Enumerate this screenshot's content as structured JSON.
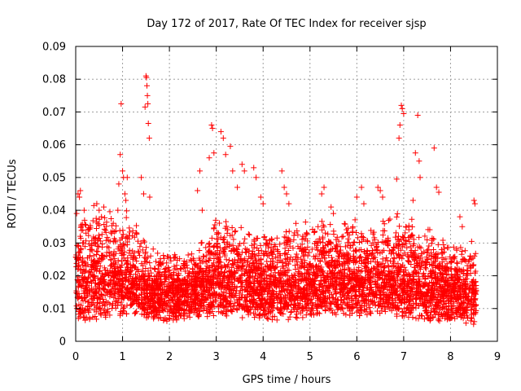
{
  "chart_data": {
    "type": "scatter",
    "title": "Day 172 of 2017, Rate Of TEC Index for receiver sjsp",
    "xlabel": "GPS time / hours",
    "ylabel": "ROTI / TECUs",
    "xlim": [
      0,
      9
    ],
    "ylim": [
      0,
      0.09
    ],
    "x_ticks": [
      "0",
      "1",
      "2",
      "3",
      "4",
      "5",
      "6",
      "7",
      "8",
      "9"
    ],
    "y_ticks": [
      "0",
      "0.01",
      "0.02",
      "0.03",
      "0.04",
      "0.05",
      "0.06",
      "0.07",
      "0.08",
      "0.09"
    ],
    "grid": true,
    "marker": "plus",
    "color": "#ff0000",
    "seed": 172,
    "series": [
      {
        "name": "ROTI",
        "x": [
          0.02,
          0.05,
          0.08,
          0.1,
          0.12,
          0.15,
          0.18,
          0.22,
          0.3,
          0.45,
          0.5,
          0.55,
          0.6,
          0.9,
          0.92,
          0.95,
          0.97,
          1.0,
          1.02,
          1.05,
          1.07,
          1.1,
          1.3,
          1.4,
          1.45,
          1.48,
          1.5,
          1.51,
          1.52,
          1.53,
          1.54,
          1.55,
          1.57,
          1.58,
          2.6,
          2.65,
          2.7,
          2.85,
          2.9,
          2.92,
          2.95,
          3.1,
          3.15,
          3.2,
          3.3,
          3.35,
          3.45,
          3.55,
          3.6,
          3.8,
          3.85,
          3.95,
          4.0,
          4.4,
          4.45,
          4.5,
          4.55,
          4.7,
          5.25,
          5.3,
          5.45,
          5.5,
          6.0,
          6.1,
          6.15,
          6.45,
          6.5,
          6.55,
          6.85,
          6.9,
          6.92,
          6.95,
          6.97,
          7.0,
          7.2,
          7.25,
          7.3,
          7.33,
          7.35,
          7.65,
          7.7,
          7.75,
          8.2,
          8.25,
          8.45,
          8.5,
          8.52
        ],
        "y": [
          0.039,
          0.045,
          0.044,
          0.046,
          0.035,
          0.03,
          0.04,
          0.033,
          0.028,
          0.042,
          0.04,
          0.038,
          0.041,
          0.04,
          0.048,
          0.057,
          0.0725,
          0.052,
          0.05,
          0.045,
          0.043,
          0.05,
          0.033,
          0.05,
          0.045,
          0.0715,
          0.081,
          0.0805,
          0.078,
          0.075,
          0.0725,
          0.0665,
          0.062,
          0.044,
          0.046,
          0.052,
          0.04,
          0.056,
          0.066,
          0.065,
          0.0575,
          0.064,
          0.062,
          0.057,
          0.0595,
          0.052,
          0.047,
          0.054,
          0.052,
          0.053,
          0.05,
          0.044,
          0.042,
          0.052,
          0.047,
          0.045,
          0.042,
          0.036,
          0.045,
          0.047,
          0.041,
          0.039,
          0.044,
          0.047,
          0.042,
          0.047,
          0.046,
          0.044,
          0.0495,
          0.062,
          0.066,
          0.072,
          0.071,
          0.0695,
          0.043,
          0.0575,
          0.069,
          0.055,
          0.05,
          0.059,
          0.047,
          0.0455,
          0.038,
          0.035,
          0.0305,
          0.043,
          0.042
        ]
      }
    ],
    "dense_band": {
      "x_range": [
        0,
        8.55
      ],
      "points_per_hour": 560,
      "baseline": [
        [
          0.0,
          0.011
        ],
        [
          0.5,
          0.012
        ],
        [
          1.0,
          0.014
        ],
        [
          1.5,
          0.013
        ],
        [
          2.0,
          0.012
        ],
        [
          2.5,
          0.012
        ],
        [
          3.0,
          0.014
        ],
        [
          3.5,
          0.013
        ],
        [
          4.0,
          0.012
        ],
        [
          4.5,
          0.012
        ],
        [
          5.0,
          0.013
        ],
        [
          5.5,
          0.014
        ],
        [
          6.0,
          0.013
        ],
        [
          6.5,
          0.014
        ],
        [
          7.0,
          0.013
        ],
        [
          7.5,
          0.012
        ],
        [
          8.0,
          0.012
        ],
        [
          8.5,
          0.011
        ]
      ],
      "spread": [
        [
          0.0,
          0.016
        ],
        [
          1.0,
          0.014
        ],
        [
          1.7,
          0.006
        ],
        [
          2.5,
          0.006
        ],
        [
          3.0,
          0.012
        ],
        [
          4.0,
          0.011
        ],
        [
          5.0,
          0.012
        ],
        [
          6.0,
          0.012
        ],
        [
          7.0,
          0.013
        ],
        [
          8.0,
          0.01
        ],
        [
          8.5,
          0.008
        ]
      ],
      "y_min": 0.0035
    }
  }
}
